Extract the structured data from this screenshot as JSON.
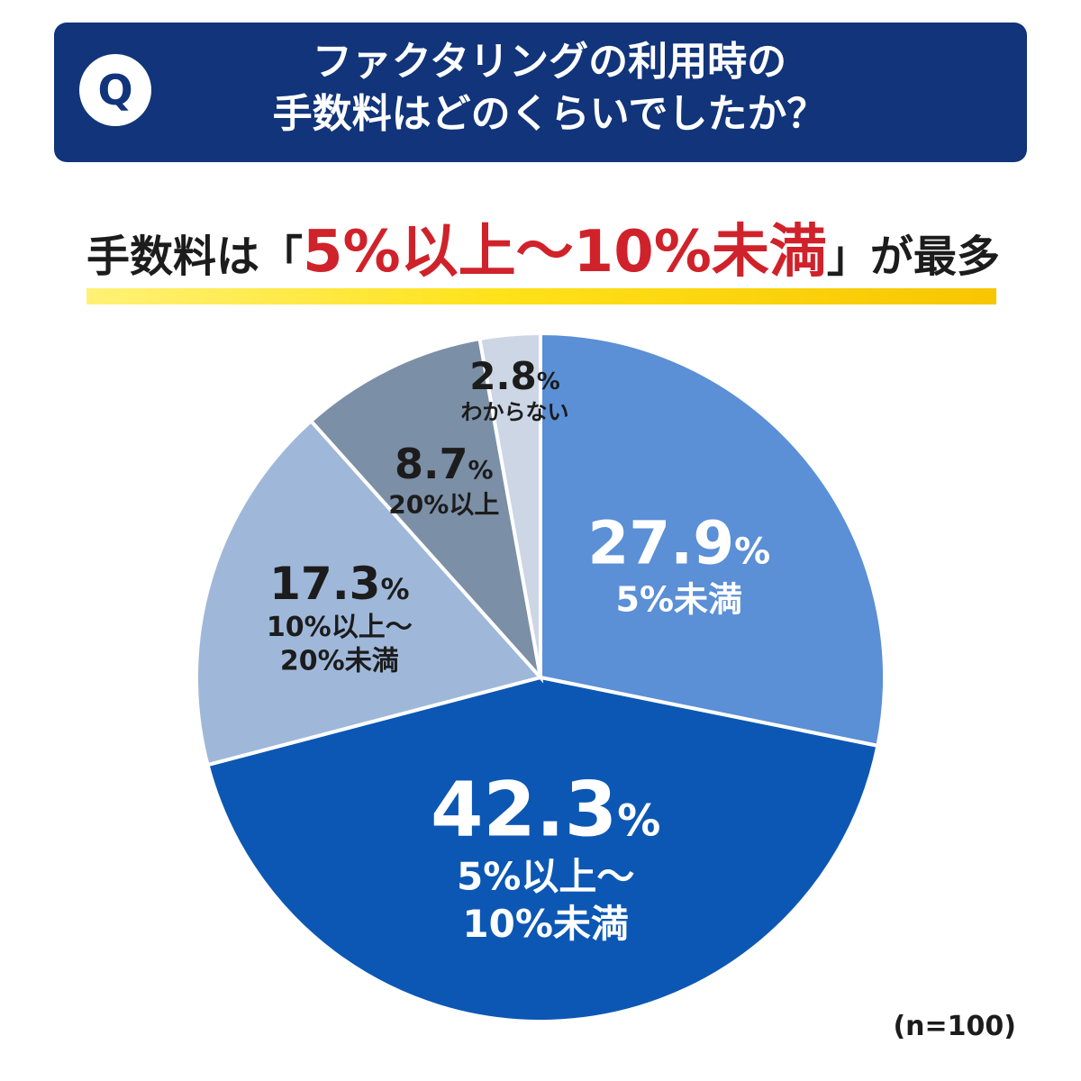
{
  "question": {
    "badge": "Q",
    "title_line1": "ファクタリングの利用時の",
    "title_line2": "手数料はどのくらいでしたか？"
  },
  "headline": {
    "prefix": "手数料は「",
    "highlight": "5%以上〜10%未満",
    "suffix": "」が最多"
  },
  "chart_data": {
    "type": "pie",
    "slices": [
      {
        "label": "5%未満",
        "value": 27.9,
        "color": "#5b8fd6",
        "text_color": "#ffffff"
      },
      {
        "label": "5%以上〜10%未満",
        "value": 42.3,
        "color": "#0c57b4",
        "text_color": "#ffffff"
      },
      {
        "label": "10%以上〜20%未満",
        "value": 17.3,
        "color": "#9fb8da",
        "text_color": "#1c1c1c"
      },
      {
        "label": "20%以上",
        "value": 8.7,
        "color": "#7b8fa6",
        "text_color": "#1c1c1c"
      },
      {
        "label": "わからない",
        "value": 2.8,
        "color": "#ccd6e4",
        "text_color": "#1c1c1c"
      }
    ],
    "percent_suffix": "%",
    "value_labels": [
      "27.9",
      "42.3",
      "17.3",
      "8.7",
      "2.8"
    ],
    "category_labels": [
      [
        "5%未満"
      ],
      [
        "5%以上〜",
        "10%未満"
      ],
      [
        "10%以上〜",
        "20%未満"
      ],
      [
        "20%以上"
      ],
      [
        "わからない"
      ]
    ]
  },
  "note": "(n=100)"
}
